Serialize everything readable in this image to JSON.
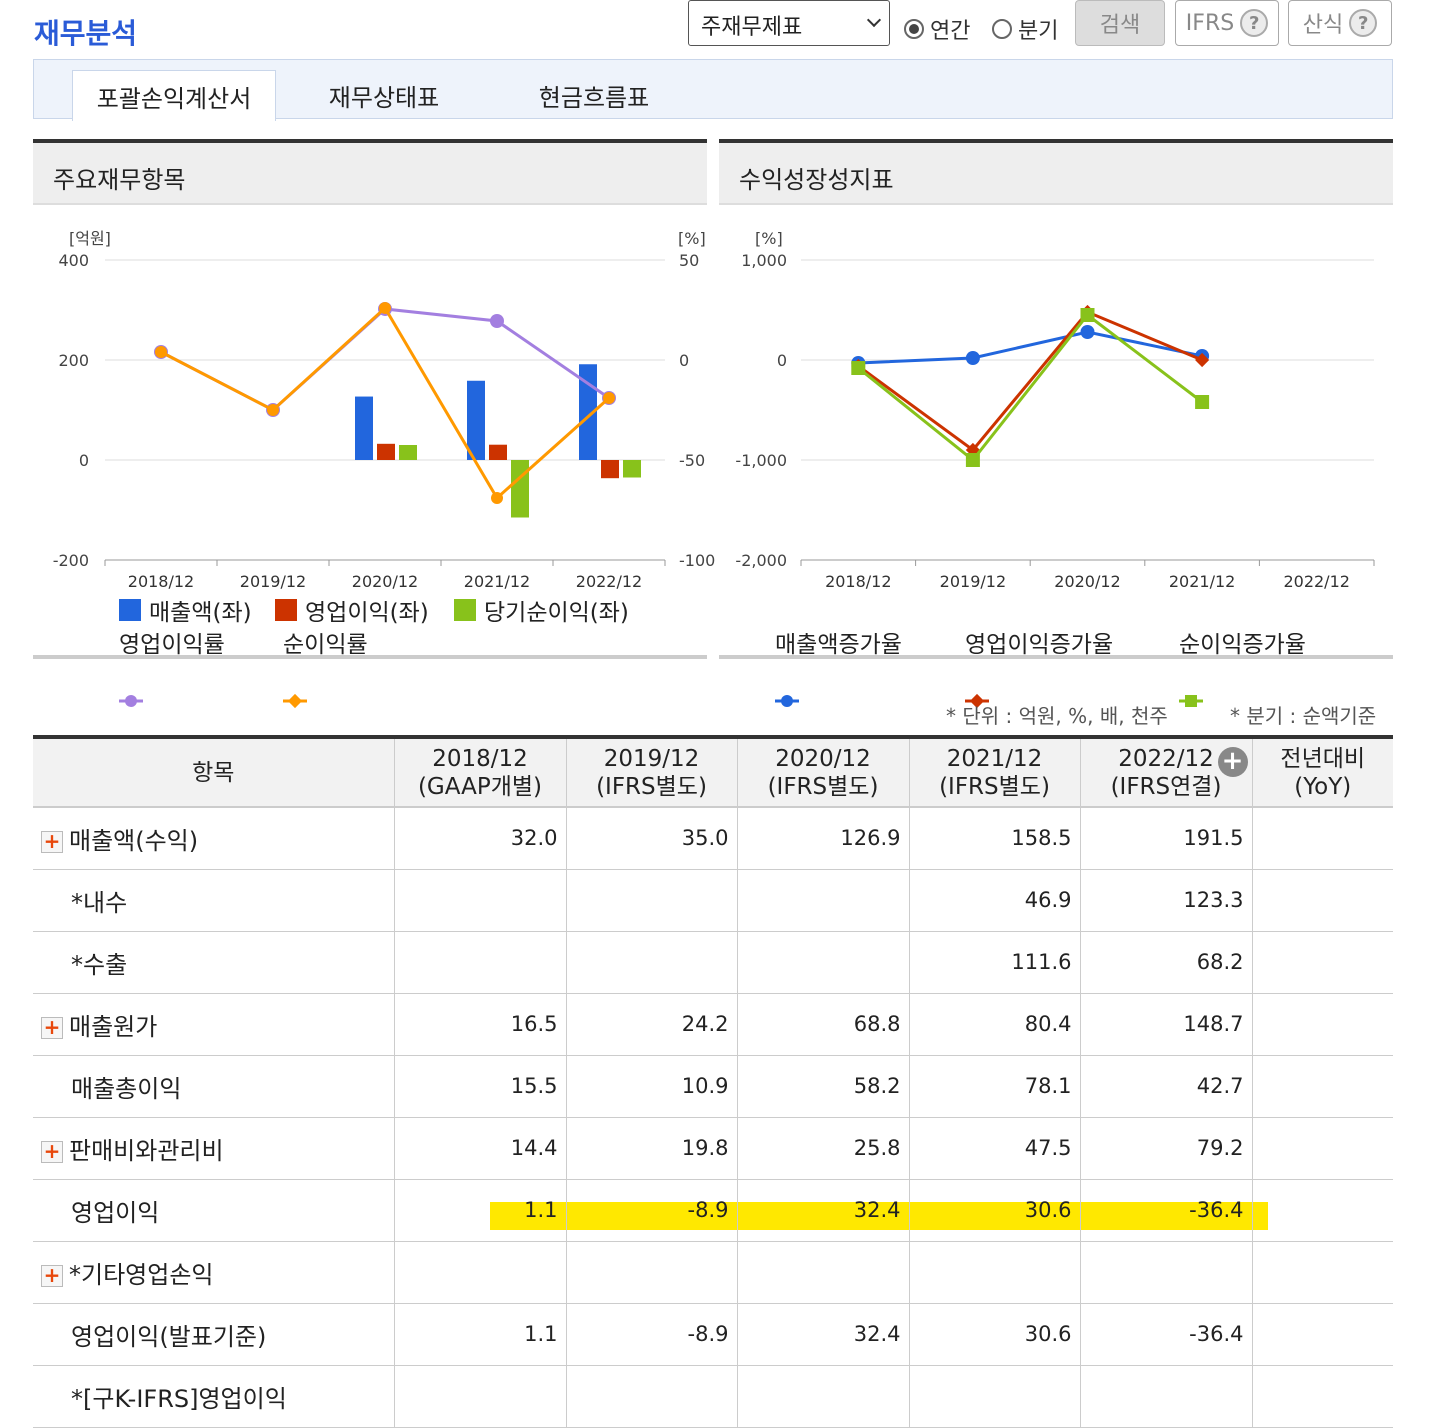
{
  "page_title": "재무분석",
  "controls": {
    "statement_select": "주재무제표",
    "radio_annual": "연간",
    "radio_quarter": "분기",
    "search_button": "검색",
    "ifrs_button": "IFRS",
    "formula_button": "산식",
    "help_icon": "?"
  },
  "tabs": [
    {
      "label": "포괄손익계산서",
      "active": true
    },
    {
      "label": "재무상태표",
      "active": false
    },
    {
      "label": "현금흐름표",
      "active": false
    }
  ],
  "colors": {
    "blue": "#2266dd",
    "red": "#cc3300",
    "green": "#88c21b",
    "purple": "#a37fe0",
    "orange": "#ff9900",
    "highlight": "#ffe800"
  },
  "chart_data": [
    {
      "type": "bar",
      "title": "주요재무항목",
      "left_unit": "[억원]",
      "right_unit": "[%]",
      "left_ylim": [
        -200,
        400
      ],
      "right_ylim": [
        -100,
        50
      ],
      "left_ticks": [
        "400",
        "200",
        "0",
        "-200"
      ],
      "right_ticks": [
        "50",
        "0",
        "-50",
        "-100"
      ],
      "categories": [
        "2018/12",
        "2019/12",
        "2020/12",
        "2021/12",
        "2022/12"
      ],
      "series": [
        {
          "name": "매출액(좌)",
          "kind": "bar",
          "axis": "left",
          "color": "#2266dd",
          "values": [
            null,
            null,
            126.9,
            158.5,
            191.5
          ]
        },
        {
          "name": "영업이익(좌)",
          "kind": "bar",
          "axis": "left",
          "color": "#cc3300",
          "values": [
            null,
            null,
            32.4,
            30.6,
            -36.4
          ]
        },
        {
          "name": "당기순이익(좌)",
          "kind": "bar",
          "axis": "left",
          "color": "#88c21b",
          "values": [
            null,
            null,
            30,
            -115,
            -35
          ]
        },
        {
          "name": "영업이익률",
          "kind": "line",
          "axis": "right",
          "color": "#a37fe0",
          "values": [
            4,
            -25,
            25.5,
            19.5,
            -19
          ]
        },
        {
          "name": "순이익률",
          "kind": "line",
          "axis": "right",
          "color": "#ff9900",
          "values": [
            4,
            -25,
            26,
            -69,
            -19
          ]
        }
      ]
    },
    {
      "type": "line",
      "title": "수익성장성지표",
      "unit": "[%]",
      "ylim": [
        -2000,
        1000
      ],
      "ticks": [
        "1,000",
        "0",
        "-1,000",
        "-2,000"
      ],
      "categories": [
        "2018/12",
        "2019/12",
        "2020/12",
        "2021/12",
        "2022/12"
      ],
      "series": [
        {
          "name": "매출액증가율",
          "color": "#2266dd",
          "marker": "circle",
          "values": [
            -30,
            20,
            280,
            40,
            null
          ]
        },
        {
          "name": "영업이익증가율",
          "color": "#cc3300",
          "marker": "diamond",
          "values": [
            -60,
            -900,
            480,
            0,
            null
          ]
        },
        {
          "name": "순이익증가율",
          "color": "#88c21b",
          "marker": "square",
          "values": [
            -80,
            -1000,
            450,
            -420,
            null
          ]
        }
      ]
    }
  ],
  "notes": {
    "unit": "* 단위 : 억원, %, 배, 천주",
    "quarter": "* 분기 : 순액기준"
  },
  "table": {
    "header_item": "항목",
    "columns": [
      {
        "year": "2018/12",
        "basis": "(GAAP개별)"
      },
      {
        "year": "2019/12",
        "basis": "(IFRS별도)"
      },
      {
        "year": "2020/12",
        "basis": "(IFRS별도)"
      },
      {
        "year": "2021/12",
        "basis": "(IFRS별도)"
      },
      {
        "year": "2022/12",
        "basis": "(IFRS연결)"
      }
    ],
    "yoy_header_1": "전년대비",
    "yoy_header_2": "(YoY)",
    "rows": [
      {
        "label": "매출액(수익)",
        "expand": true,
        "indent": false,
        "values": [
          "32.0",
          "35.0",
          "126.9",
          "158.5",
          "191.5"
        ],
        "yoy": ""
      },
      {
        "label": "*내수",
        "expand": false,
        "indent": true,
        "values": [
          "",
          "",
          "",
          "46.9",
          "123.3"
        ],
        "yoy": ""
      },
      {
        "label": "*수출",
        "expand": false,
        "indent": true,
        "values": [
          "",
          "",
          "",
          "111.6",
          "68.2"
        ],
        "yoy": ""
      },
      {
        "label": "매출원가",
        "expand": true,
        "indent": false,
        "values": [
          "16.5",
          "24.2",
          "68.8",
          "80.4",
          "148.7"
        ],
        "yoy": ""
      },
      {
        "label": "매출총이익",
        "expand": false,
        "indent": true,
        "values": [
          "15.5",
          "10.9",
          "58.2",
          "78.1",
          "42.7"
        ],
        "yoy": ""
      },
      {
        "label": "판매비와관리비",
        "expand": true,
        "indent": false,
        "values": [
          "14.4",
          "19.8",
          "25.8",
          "47.5",
          "79.2"
        ],
        "yoy": ""
      },
      {
        "label": "영업이익",
        "expand": false,
        "indent": true,
        "values": [
          "1.1",
          "-8.9",
          "32.4",
          "30.6",
          "-36.4"
        ],
        "yoy": ""
      },
      {
        "label": "*기타영업손익",
        "expand": true,
        "indent": false,
        "values": [
          "",
          "",
          "",
          "",
          ""
        ],
        "yoy": ""
      },
      {
        "label": "영업이익(발표기준)",
        "expand": false,
        "indent": true,
        "values": [
          "1.1",
          "-8.9",
          "32.4",
          "30.6",
          "-36.4"
        ],
        "yoy": ""
      },
      {
        "label": "*[구K-IFRS]영업이익",
        "expand": false,
        "indent": true,
        "values": [
          "",
          "",
          "",
          "",
          ""
        ],
        "yoy": ""
      }
    ]
  }
}
